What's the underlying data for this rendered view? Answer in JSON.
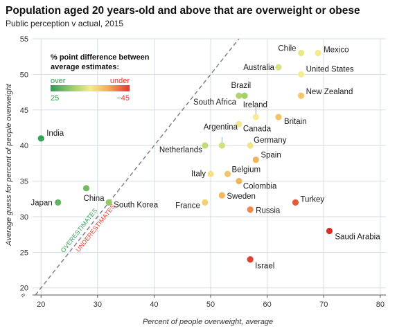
{
  "chart_data": {
    "type": "scatter",
    "title": "Population aged 20 years-old and above that are overweight or obese",
    "subtitle": "Public perception v actual, 2015",
    "xlabel": "Percent of people overweight, average",
    "ylabel": "Average guess for percent of people overweight",
    "xlim": [
      18.5,
      81
    ],
    "ylim": [
      19,
      55
    ],
    "x_ticks": [
      20,
      30,
      40,
      50,
      60,
      70,
      80
    ],
    "y_ticks": [
      20,
      25,
      30,
      35,
      40,
      45,
      50,
      55
    ],
    "axis_break": "≈",
    "grid": true,
    "reference_line": "y = x",
    "annotations": {
      "above": "OVERESTIMATES",
      "below": "UNDERESTIMATES"
    },
    "legend": {
      "title_line1": "% point difference between",
      "title_line2": "average estimates:",
      "over_label": "over",
      "under_label": "under",
      "min_label": "25",
      "max_label": "−45",
      "colors": [
        "#2e9e55",
        "#a9d16a",
        "#f4ea8c",
        "#f5b05b",
        "#e0392b"
      ]
    },
    "points": [
      {
        "name": "India",
        "x": 20,
        "y": 41,
        "color": "#35a35a"
      },
      {
        "name": "Japan",
        "x": 23,
        "y": 32,
        "color": "#64b462"
      },
      {
        "name": "China",
        "x": 28,
        "y": 34,
        "color": "#72ba64"
      },
      {
        "name": "South Korea",
        "x": 32,
        "y": 32,
        "color": "#96c86a"
      },
      {
        "name": "Netherlands",
        "x": 49,
        "y": 40,
        "color": "#c2db76"
      },
      {
        "name": "Argentina",
        "x": 52,
        "y": 40,
        "color": "#d2e07e"
      },
      {
        "name": "Brazil",
        "x": 55,
        "y": 47,
        "color": "#b2d470"
      },
      {
        "name": "South Africa",
        "x": 56,
        "y": 47,
        "color": "#a6cf6e"
      },
      {
        "name": "Australia",
        "x": 62,
        "y": 51,
        "color": "#d8e383"
      },
      {
        "name": "Chile",
        "x": 66,
        "y": 53,
        "color": "#e6e88a"
      },
      {
        "name": "Mexico",
        "x": 69,
        "y": 53,
        "color": "#f4ea8c"
      },
      {
        "name": "United States",
        "x": 66,
        "y": 50,
        "color": "#f7ec96"
      },
      {
        "name": "New Zealand",
        "x": 66,
        "y": 47,
        "color": "#f2c66a"
      },
      {
        "name": "Ireland",
        "x": 58,
        "y": 44,
        "color": "#f8eb98"
      },
      {
        "name": "Canada",
        "x": 55,
        "y": 43,
        "color": "#ece98f"
      },
      {
        "name": "Britain",
        "x": 62,
        "y": 44,
        "color": "#f3c36a"
      },
      {
        "name": "Germany",
        "x": 57,
        "y": 40,
        "color": "#f5e28b"
      },
      {
        "name": "Spain",
        "x": 58,
        "y": 38,
        "color": "#f2b45a"
      },
      {
        "name": "Italy",
        "x": 50,
        "y": 36,
        "color": "#f4e18a"
      },
      {
        "name": "Belgium",
        "x": 53,
        "y": 36,
        "color": "#f3c56c"
      },
      {
        "name": "Colombia",
        "x": 55,
        "y": 35,
        "color": "#f2b45b"
      },
      {
        "name": "France",
        "x": 49,
        "y": 32,
        "color": "#f4cf75"
      },
      {
        "name": "Sweden",
        "x": 52,
        "y": 33,
        "color": "#f2b95e"
      },
      {
        "name": "Russia",
        "x": 57,
        "y": 31,
        "color": "#ec8a4a"
      },
      {
        "name": "Turkey",
        "x": 65,
        "y": 32,
        "color": "#e45a36"
      },
      {
        "name": "Saudi Arabia",
        "x": 71,
        "y": 28,
        "color": "#dc2f2a"
      },
      {
        "name": "Israel",
        "x": 57,
        "y": 24,
        "color": "#df4230"
      }
    ]
  }
}
